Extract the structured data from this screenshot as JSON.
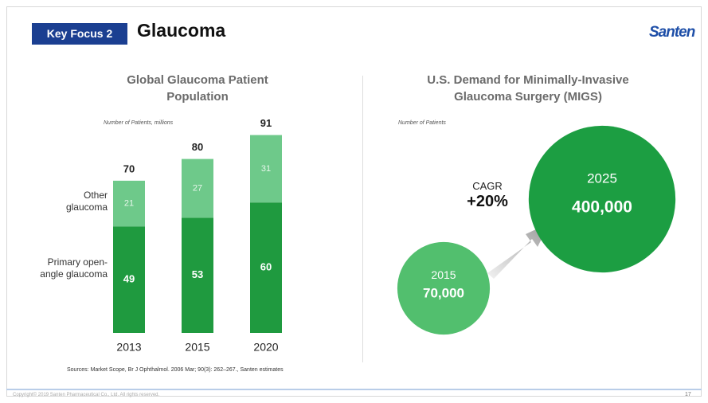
{
  "header": {
    "badge": "Key Focus 2",
    "title": "Glaucoma",
    "logo": "Santen"
  },
  "chart_data": [
    {
      "type": "stacked-bar",
      "title": "Global Glaucoma Patient Population",
      "unit_label": "Number of Patients, millions",
      "categories": [
        "2013",
        "2015",
        "2020"
      ],
      "series": [
        {
          "name": "Primary open-angle glaucoma",
          "color": "#1f9a3f",
          "values": [
            49,
            53,
            60
          ]
        },
        {
          "name": "Other glaucoma",
          "color": "#6ec98a",
          "values": [
            21,
            27,
            31
          ]
        }
      ],
      "totals": [
        70,
        80,
        91
      ]
    },
    {
      "type": "bubble",
      "title": "U.S. Demand for Minimally-Invasive Glaucoma Surgery (MIGS)",
      "unit_label": "Number of Patients",
      "categories": [
        "2015",
        "2025"
      ],
      "values": [
        70000,
        400000
      ],
      "value_labels": [
        "70,000",
        "400,000"
      ],
      "colors": [
        "#52bf6e",
        "#1c9e42"
      ],
      "annotation": {
        "label": "CAGR",
        "value": "+20%"
      }
    }
  ],
  "footer": {
    "sources": "Sources:  Market Scope, Br J Ophthalmol. 2006 Mar; 90(3): 262–267., Santen estimates",
    "copyright": "Copyright© 2019 Santen Pharmaceutical Co., Ltd. All rights reserved.",
    "page": "17"
  }
}
